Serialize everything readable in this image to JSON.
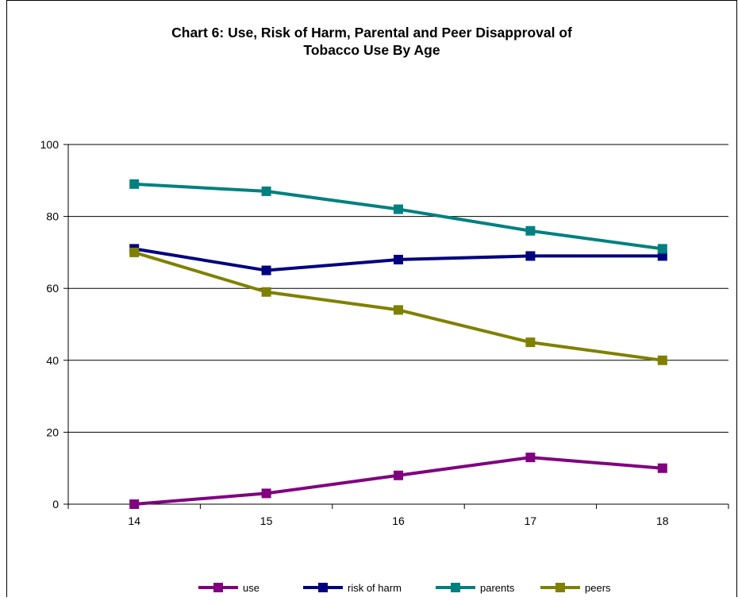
{
  "chart_data": {
    "type": "line",
    "title_line1": "Chart 6:  Use, Risk of Harm, Parental and Peer Disapproval of",
    "title_line2": "Tobacco Use By Age",
    "xlabel": "",
    "ylabel": "",
    "categories": [
      "14",
      "15",
      "16",
      "17",
      "18"
    ],
    "ylim": [
      0,
      100
    ],
    "yticks": [
      "0",
      "20",
      "40",
      "60",
      "80",
      "100"
    ],
    "grid": true,
    "legend_position": "bottom",
    "series": [
      {
        "name": "use",
        "color": "#800080",
        "values": [
          0,
          3,
          8,
          13,
          10
        ]
      },
      {
        "name": "risk of harm",
        "color": "#000080",
        "values": [
          71,
          65,
          68,
          69,
          69
        ]
      },
      {
        "name": "parents",
        "color": "#008080",
        "values": [
          89,
          87,
          82,
          76,
          71
        ]
      },
      {
        "name": "peers",
        "color": "#808000",
        "values": [
          70,
          59,
          54,
          45,
          40
        ]
      }
    ]
  }
}
